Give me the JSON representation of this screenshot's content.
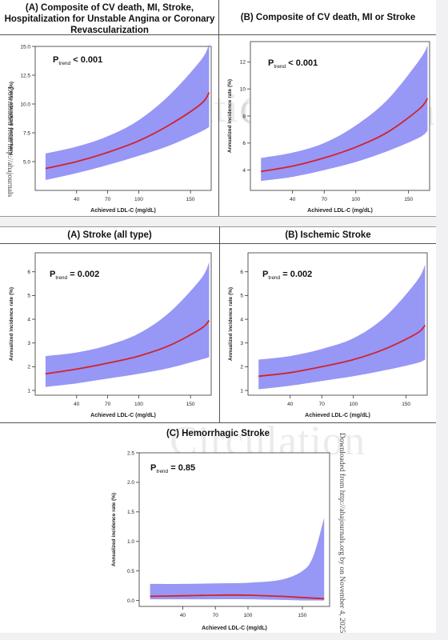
{
  "watermark": "Circulation",
  "side_note": "Downloaded from http://ahajournals.org by on November 4, 2025",
  "side_note_partial": "Downloaded from http://ahajournals",
  "series_color": "#d2232a",
  "band_color": "#8c8cf5",
  "chart_data": [
    {
      "id": "p1",
      "type": "line",
      "title": "(A) Composite of CV death, MI, Stroke, Hospitalization for Unstable Angina or Coronary Revascularization",
      "title_lines": [
        "(A) Composite of CV death, MI, Stroke,",
        "Hospitalization for Unstable Angina or Coronary",
        "Revascularization"
      ],
      "ptrend": "< 0.001",
      "xlabel": "Achieved LDL-C (mg/dL)",
      "ylabel": "Annualized incidence rate (%)",
      "xlim": [
        0,
        170
      ],
      "ylim": [
        2.5,
        15
      ],
      "xticks": [
        40,
        70,
        100,
        150
      ],
      "yticks": [
        5.0,
        7.5,
        10.0,
        12.5,
        15.0
      ],
      "ytick_labels": [
        "5.0",
        "7.5",
        "10.0",
        "12.5",
        "15.0"
      ],
      "x": [
        10,
        40,
        70,
        100,
        130,
        160,
        168
      ],
      "y": [
        4.4,
        5.0,
        5.8,
        6.8,
        8.2,
        10.0,
        11.0
      ],
      "lower": [
        3.4,
        4.0,
        4.7,
        5.5,
        6.4,
        7.6,
        8.0
      ],
      "upper": [
        5.7,
        6.3,
        7.2,
        8.6,
        10.8,
        13.8,
        15.2
      ]
    },
    {
      "id": "p2",
      "type": "line",
      "title": "(B) Composite of CV death, MI or Stroke",
      "title_lines": [
        "(B) Composite of CV death, MI or Stroke"
      ],
      "ptrend": "< 0.001",
      "xlabel": "Achieved LDL-C (mg/dL)",
      "ylabel": "Annualized incidence rate (%)",
      "xlim": [
        0,
        170
      ],
      "ylim": [
        2.5,
        13.5
      ],
      "xticks": [
        40,
        70,
        100,
        150
      ],
      "yticks": [
        4,
        6,
        8,
        10,
        12
      ],
      "ytick_labels": [
        "4",
        "6",
        "8",
        "10",
        "12"
      ],
      "x": [
        10,
        40,
        70,
        100,
        130,
        160,
        168
      ],
      "y": [
        3.9,
        4.3,
        4.9,
        5.7,
        6.8,
        8.5,
        9.3
      ],
      "lower": [
        3.2,
        3.5,
        4.0,
        4.6,
        5.4,
        6.4,
        6.9
      ],
      "upper": [
        4.9,
        5.3,
        6.0,
        7.3,
        9.2,
        12.1,
        13.2
      ]
    },
    {
      "id": "p3",
      "type": "line",
      "title": "(A) Stroke (all type)",
      "title_lines": [
        "(A) Stroke (all type)"
      ],
      "ptrend": "= 0.002",
      "xlabel": "Achieved LDL-C (mg/dL)",
      "ylabel": "Annualized incidence rate (%)",
      "xlim": [
        0,
        170
      ],
      "ylim": [
        0.8,
        6.8
      ],
      "xticks": [
        40,
        70,
        100,
        150
      ],
      "yticks": [
        1,
        2,
        3,
        4,
        5,
        6
      ],
      "ytick_labels": [
        "1",
        "2",
        "3",
        "4",
        "5",
        "6"
      ],
      "x": [
        10,
        40,
        70,
        100,
        130,
        160,
        168
      ],
      "y": [
        1.7,
        1.9,
        2.15,
        2.45,
        2.9,
        3.6,
        3.95
      ],
      "lower": [
        1.15,
        1.3,
        1.5,
        1.7,
        1.95,
        2.3,
        2.4
      ],
      "upper": [
        2.45,
        2.6,
        2.9,
        3.4,
        4.3,
        5.7,
        6.4
      ]
    },
    {
      "id": "p4",
      "type": "line",
      "title": "(B) Ischemic Stroke",
      "title_lines": [
        "(B) Ischemic Stroke"
      ],
      "ptrend": "= 0.002",
      "xlabel": "Achieved LDL-C (mg/dL)",
      "ylabel": "Annualized incidence rate (%)",
      "xlim": [
        0,
        170
      ],
      "ylim": [
        0.8,
        6.8
      ],
      "xticks": [
        40,
        70,
        100,
        150
      ],
      "yticks": [
        1,
        2,
        3,
        4,
        5,
        6
      ],
      "ytick_labels": [
        "1",
        "2",
        "3",
        "4",
        "5",
        "6"
      ],
      "x": [
        10,
        40,
        70,
        100,
        130,
        160,
        168
      ],
      "y": [
        1.6,
        1.75,
        2.0,
        2.3,
        2.75,
        3.4,
        3.75
      ],
      "lower": [
        1.05,
        1.2,
        1.4,
        1.6,
        1.85,
        2.15,
        2.3
      ],
      "upper": [
        2.3,
        2.45,
        2.75,
        3.2,
        4.1,
        5.6,
        6.3
      ]
    },
    {
      "id": "p5",
      "type": "line",
      "title": "(C) Hemorrhagic Stroke",
      "title_lines": [
        "(C) Hemorrhagic Stroke"
      ],
      "ptrend": "= 0.85",
      "xlabel": "Achieved LDL-C (mg/dL)",
      "ylabel": "Annualized incidence rate (%)",
      "xlim": [
        0,
        175
      ],
      "ylim": [
        -0.1,
        2.5
      ],
      "xticks": [
        40,
        70,
        100,
        150
      ],
      "yticks": [
        0.0,
        0.5,
        1.0,
        1.5,
        2.0,
        2.5
      ],
      "ytick_labels": [
        "0.0",
        "0.5",
        "1.0",
        "1.5",
        "2.0",
        "2.5"
      ],
      "x": [
        10,
        40,
        70,
        100,
        130,
        150,
        160,
        170
      ],
      "y": [
        0.07,
        0.08,
        0.09,
        0.09,
        0.07,
        0.05,
        0.04,
        0.03
      ],
      "lower": [
        0.02,
        0.02,
        0.02,
        0.02,
        0.01,
        0.0,
        0.0,
        0.0
      ],
      "upper": [
        0.28,
        0.28,
        0.29,
        0.3,
        0.35,
        0.5,
        0.75,
        1.4
      ]
    }
  ]
}
